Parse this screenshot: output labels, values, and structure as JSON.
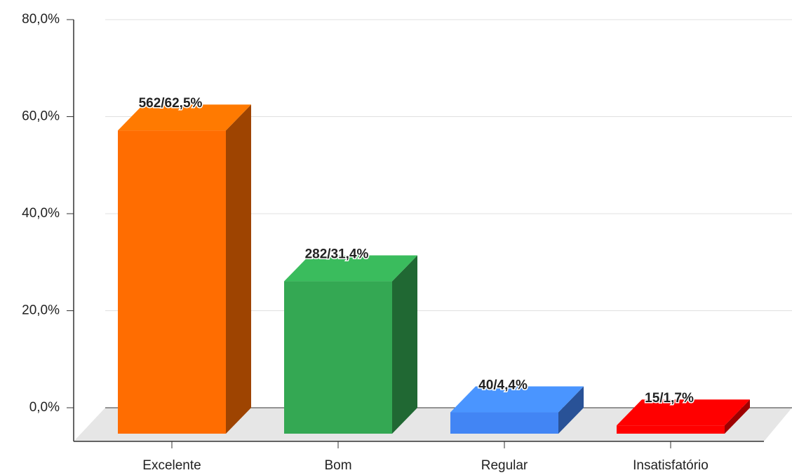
{
  "chart_data": {
    "type": "bar3d",
    "categories": [
      "Excelente",
      "Bom",
      "Regular",
      "Insatisfatório"
    ],
    "values": [
      62.5,
      31.4,
      4.4,
      1.7
    ],
    "value_labels": [
      "562/62,5%",
      "282/31,4%",
      "40/4,4%",
      "15/1,7%"
    ],
    "colors": [
      "#ff6d01",
      "#34a853",
      "#4285f4",
      "#ff0000"
    ],
    "ylim": [
      0,
      80
    ],
    "yticks": [
      {
        "value": 0,
        "label": "0,0%"
      },
      {
        "value": 20,
        "label": "20,0%"
      },
      {
        "value": 40,
        "label": "40,0%"
      },
      {
        "value": 60,
        "label": "60,0%"
      },
      {
        "value": 80,
        "label": "80,0%"
      }
    ],
    "grid": true
  }
}
